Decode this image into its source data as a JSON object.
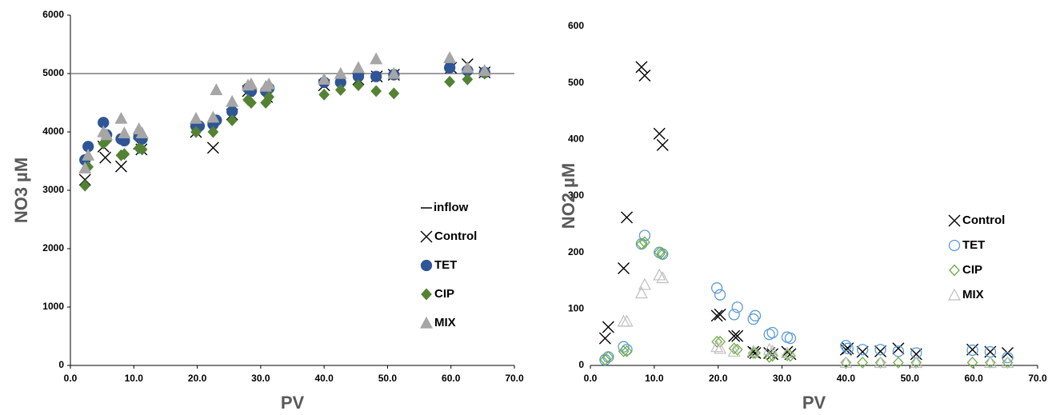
{
  "chart_data": [
    {
      "type": "scatter",
      "xlabel": "PV",
      "ylabel": "NO3 µM",
      "filled": true,
      "legend": "right",
      "xlim": [
        0,
        70
      ],
      "ylim": [
        0,
        6000
      ],
      "xticks": [
        {
          "value": 0,
          "label": "0.0"
        },
        {
          "value": 10,
          "label": "10.0"
        },
        {
          "value": 20,
          "label": "20.0"
        },
        {
          "value": 30,
          "label": "30.0"
        },
        {
          "value": 40,
          "label": "40.0"
        },
        {
          "value": 50,
          "label": "50.0"
        },
        {
          "value": 60,
          "label": "60.0"
        },
        {
          "value": 70,
          "label": "70.0"
        }
      ],
      "yticks": [
        0,
        1000,
        2000,
        3000,
        4000,
        5000,
        6000
      ],
      "series": [
        {
          "name": "inflow",
          "color": "#7f7f7f",
          "marker": "line",
          "x": [
            0,
            70
          ],
          "values": [
            5000,
            5000
          ]
        },
        {
          "name": "Control",
          "color": "#000000",
          "marker": "x",
          "x": [
            2.3,
            5.2,
            5.5,
            8.0,
            10.8,
            11.2,
            19.8,
            22.5,
            25.5,
            28.0,
            31.0,
            40.0,
            45.4,
            48.3,
            51.0,
            60.0,
            62.6,
            65.3
          ],
          "values": [
            3180,
            3750,
            3560,
            3410,
            3800,
            3700,
            4000,
            3730,
            4300,
            4700,
            4600,
            4800,
            4900,
            4950,
            4980,
            5100,
            5160,
            5020
          ]
        },
        {
          "name": "TET",
          "color": "#2f5597",
          "marker": "circle",
          "x": [
            2.3,
            2.8,
            5.2,
            5.7,
            8.0,
            8.5,
            10.8,
            11.3,
            19.8,
            20.3,
            22.5,
            23.0,
            25.5,
            28.0,
            28.5,
            30.8,
            31.3,
            40.0,
            42.6,
            45.4,
            48.2,
            51.0,
            59.8,
            62.6,
            65.3
          ],
          "values": [
            3520,
            3750,
            4160,
            3950,
            3880,
            3850,
            3920,
            3880,
            4100,
            4100,
            4130,
            4200,
            4350,
            4750,
            4700,
            4700,
            4750,
            4850,
            4850,
            4950,
            4950,
            4980,
            5100,
            5050,
            5020
          ]
        },
        {
          "name": "CIP",
          "color": "#548235",
          "marker": "diamond",
          "x": [
            2.3,
            2.8,
            5.2,
            5.7,
            8.0,
            8.5,
            10.8,
            11.3,
            19.8,
            22.5,
            25.5,
            28.0,
            28.5,
            30.8,
            31.3,
            40.0,
            42.6,
            45.4,
            48.2,
            51.0,
            59.8,
            62.6,
            65.3
          ],
          "values": [
            3080,
            3400,
            3800,
            3850,
            3600,
            3620,
            3720,
            3700,
            4000,
            4000,
            4200,
            4550,
            4500,
            4500,
            4600,
            4640,
            4720,
            4800,
            4700,
            4660,
            4860,
            4900,
            5000
          ]
        },
        {
          "name": "MIX",
          "color": "#a6a6a6",
          "marker": "triangle",
          "x": [
            2.3,
            2.8,
            5.2,
            5.7,
            8.0,
            8.5,
            10.8,
            11.3,
            19.8,
            22.5,
            23.0,
            25.5,
            28.0,
            28.5,
            30.8,
            31.3,
            40.0,
            42.6,
            45.4,
            48.2,
            51.0,
            59.8,
            62.6,
            65.3
          ],
          "values": [
            3380,
            3600,
            4000,
            3950,
            4230,
            3980,
            4050,
            3980,
            4230,
            4250,
            4720,
            4520,
            4800,
            4820,
            4780,
            4820,
            4900,
            5000,
            5100,
            5250,
            5000,
            5270,
            5100,
            5050
          ]
        }
      ]
    },
    {
      "type": "scatter",
      "xlabel": "PV",
      "ylabel": "NO2 µM",
      "filled": false,
      "legend": "right",
      "xlim": [
        0,
        70
      ],
      "ylim": [
        0,
        600
      ],
      "xticks": [
        {
          "value": 0,
          "label": "0.0"
        },
        {
          "value": 10,
          "label": "10.0"
        },
        {
          "value": 20,
          "label": "20.0"
        },
        {
          "value": 30,
          "label": "30.0"
        },
        {
          "value": 40,
          "label": "40.0"
        },
        {
          "value": 50,
          "label": "50.0"
        },
        {
          "value": 60,
          "label": "60.0"
        },
        {
          "value": 70,
          "label": "70.0"
        }
      ],
      "yticks": [
        0,
        100,
        200,
        300,
        400,
        500,
        600
      ],
      "series": [
        {
          "name": "Control",
          "color": "#000000",
          "marker": "x",
          "x": [
            2.3,
            2.8,
            5.2,
            5.7,
            8.0,
            8.5,
            10.8,
            11.3,
            19.8,
            20.3,
            22.5,
            23.0,
            25.5,
            25.8,
            28.0,
            28.5,
            30.8,
            31.3,
            40.0,
            40.3,
            42.6,
            45.4,
            48.2,
            51.0,
            59.8,
            62.6,
            65.3
          ],
          "values": [
            48,
            68,
            172,
            262,
            528,
            513,
            410,
            390,
            88,
            90,
            52,
            52,
            24,
            22,
            22,
            20,
            24,
            20,
            28,
            30,
            24,
            25,
            30,
            20,
            28,
            24,
            22
          ]
        },
        {
          "name": "TET",
          "color": "#5b9bd5",
          "marker": "circle",
          "x": [
            2.3,
            2.8,
            5.2,
            5.7,
            8.0,
            8.5,
            10.8,
            11.3,
            19.8,
            20.3,
            22.5,
            23.0,
            25.5,
            25.8,
            28.0,
            28.5,
            30.8,
            31.3,
            40.0,
            40.3,
            42.6,
            45.4,
            48.2,
            51.0,
            59.8,
            62.6,
            65.3
          ],
          "values": [
            10,
            15,
            33,
            28,
            215,
            230,
            200,
            197,
            137,
            125,
            90,
            103,
            82,
            88,
            55,
            58,
            50,
            48,
            35,
            30,
            28,
            28,
            25,
            22,
            27,
            24,
            14
          ]
        },
        {
          "name": "CIP",
          "color": "#70ad47",
          "marker": "diamond",
          "x": [
            2.3,
            2.8,
            5.2,
            5.7,
            8.0,
            8.5,
            10.8,
            11.3,
            19.8,
            20.3,
            22.5,
            23.0,
            25.5,
            25.8,
            28.0,
            28.5,
            30.8,
            31.3,
            40.0,
            42.6,
            45.4,
            48.2,
            51.0,
            59.8,
            62.6,
            65.3
          ],
          "values": [
            10,
            15,
            25,
            25,
            215,
            218,
            200,
            197,
            42,
            42,
            30,
            28,
            22,
            22,
            15,
            17,
            18,
            17,
            5,
            5,
            5,
            5,
            5,
            5,
            5,
            5
          ]
        },
        {
          "name": "MIX",
          "color": "#bfbfbf",
          "marker": "triangle",
          "x": [
            5.2,
            5.7,
            8.0,
            8.5,
            10.8,
            11.3,
            19.8,
            20.3,
            22.5,
            25.5,
            28.0,
            28.5,
            30.8,
            40.0,
            45.4,
            51.0,
            62.6,
            65.3
          ],
          "values": [
            78,
            78,
            128,
            143,
            160,
            155,
            33,
            30,
            25,
            25,
            28,
            25,
            22,
            5,
            5,
            5,
            5,
            5
          ]
        }
      ]
    }
  ]
}
